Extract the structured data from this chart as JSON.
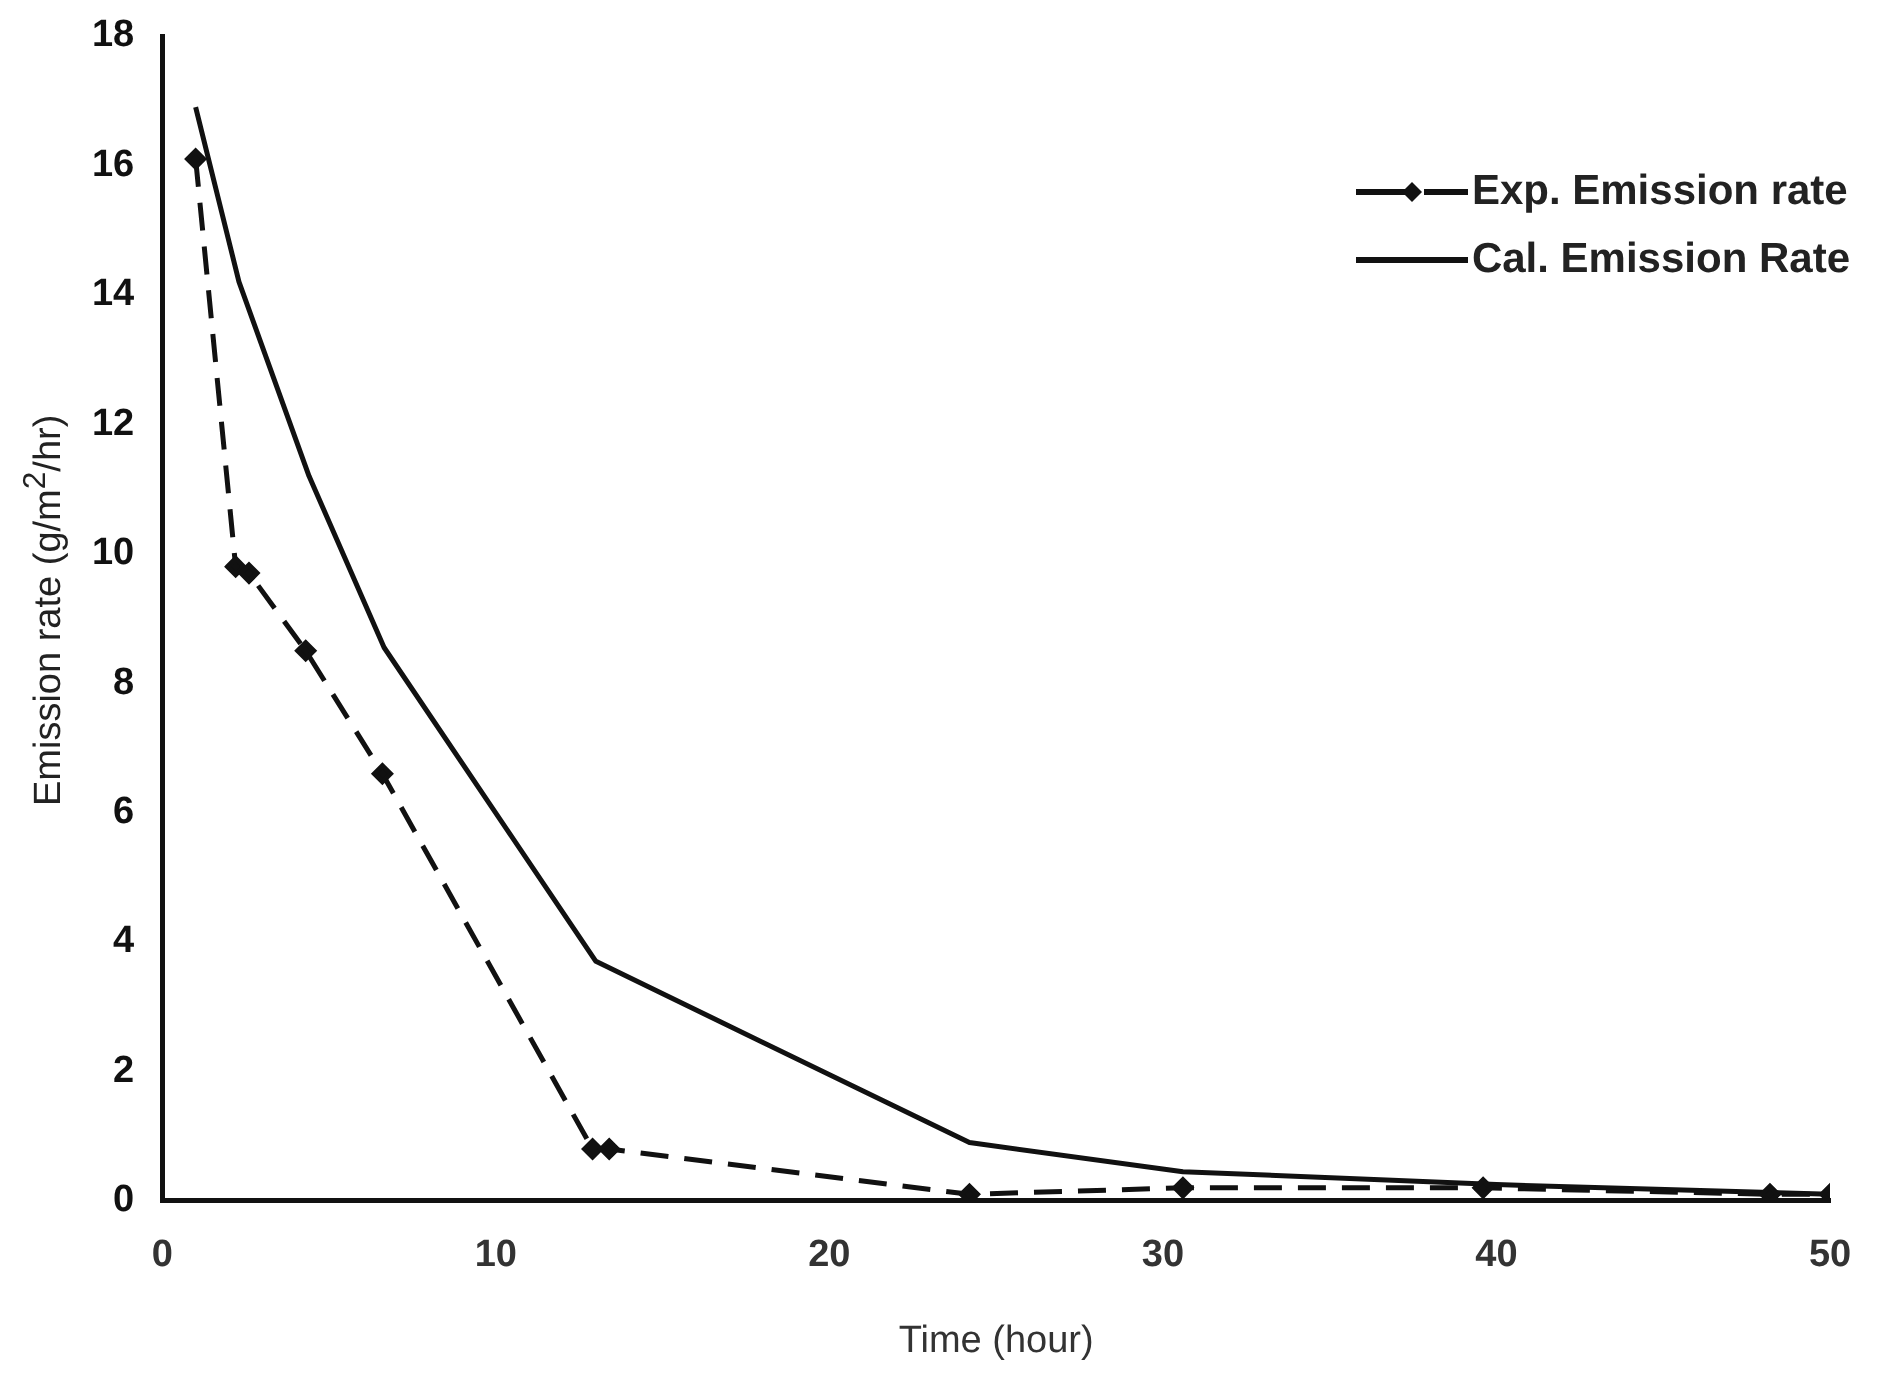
{
  "chart_data": {
    "type": "line",
    "xlabel": "Time (hour)",
    "ylabel": "Emission rate (g/m$^{2}$/hr)",
    "xlim": [
      0,
      50
    ],
    "xticks": [
      0,
      10,
      20,
      30,
      40,
      50
    ],
    "ylim": [
      0,
      18
    ],
    "yticks": [
      0,
      2,
      4,
      6,
      8,
      10,
      12,
      14,
      16,
      18
    ],
    "grid": false,
    "legend": "top right",
    "series": [
      {
        "name": "Exp. Emission rate",
        "color": "#111111",
        "marker": "diamond",
        "line_style": "dashed",
        "x": [
          1.0,
          2.2,
          2.6,
          4.3,
          6.6,
          12.9,
          13.4,
          24.2,
          30.6,
          39.6,
          48.2,
          50
        ],
        "values": [
          16.1,
          9.8,
          9.7,
          8.5,
          6.6,
          0.8,
          0.8,
          0.1,
          0.2,
          0.2,
          0.1,
          0.1
        ]
      },
      {
        "name": "Cal. Emission Rate",
        "color": "#111111",
        "marker": "none",
        "line_style": "solid",
        "x": [
          1.0,
          2.3,
          4.4,
          6.65,
          13,
          24.2,
          30.6,
          40,
          50
        ],
        "values": [
          16.9,
          14.2,
          11.2,
          8.55,
          3.7,
          0.9,
          0.45,
          0.25,
          0.1
        ]
      }
    ]
  }
}
